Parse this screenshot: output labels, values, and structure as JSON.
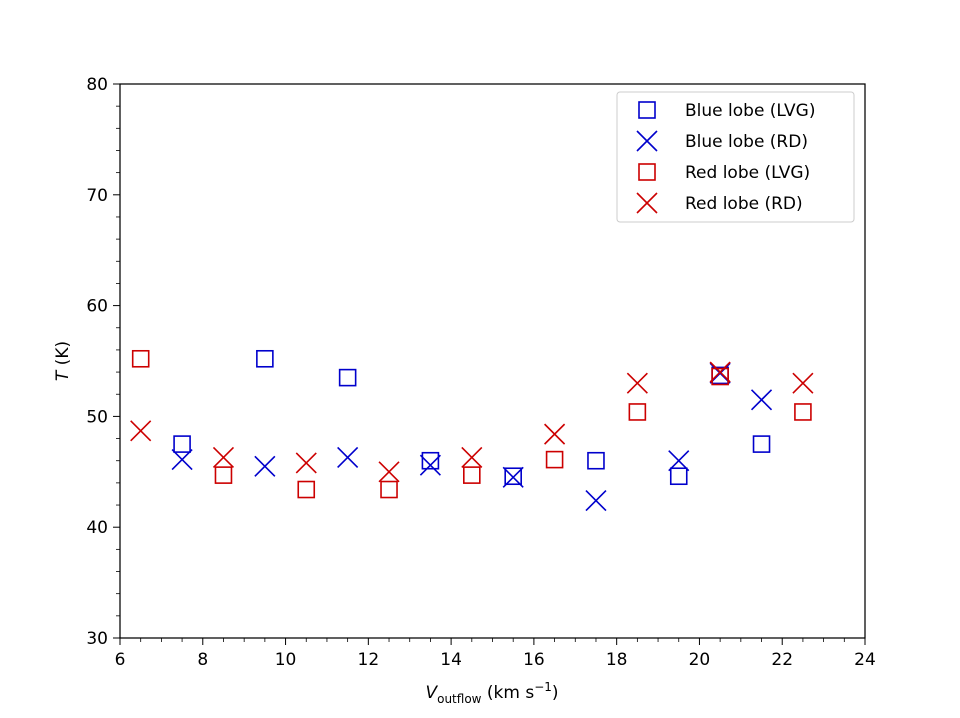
{
  "chart_data": {
    "type": "scatter",
    "title": "",
    "xlabel_main": "V",
    "xlabel_sub": "outflow",
    "xlabel_unit_pre": " (km s",
    "xlabel_unit_sup": "−1",
    "xlabel_unit_post": ")",
    "ylabel_main": "T",
    "ylabel_unit": " (K)",
    "xlim": [
      6,
      24
    ],
    "ylim": [
      30,
      80
    ],
    "xticks": [
      6,
      8,
      10,
      12,
      14,
      16,
      18,
      20,
      22,
      24
    ],
    "yticks": [
      30,
      40,
      50,
      60,
      70,
      80
    ],
    "xminor_step": 0.5,
    "yminor_step": 2,
    "legend_position": "top-right",
    "colors": {
      "blue": "#0000cc",
      "red": "#cc0000"
    },
    "series": [
      {
        "name": "Blue lobe (LVG)",
        "marker": "square",
        "color": "#0000cc",
        "points": [
          [
            7.5,
            47.5
          ],
          [
            9.5,
            55.2
          ],
          [
            11.5,
            53.5
          ],
          [
            13.5,
            46.0
          ],
          [
            15.5,
            44.6
          ],
          [
            17.5,
            46.0
          ],
          [
            19.5,
            44.6
          ],
          [
            20.5,
            53.7
          ],
          [
            21.5,
            47.5
          ]
        ]
      },
      {
        "name": "Blue lobe (RD)",
        "marker": "x",
        "color": "#0000cc",
        "points": [
          [
            7.5,
            46.1
          ],
          [
            9.5,
            45.5
          ],
          [
            11.5,
            46.3
          ],
          [
            13.5,
            45.6
          ],
          [
            15.5,
            44.5
          ],
          [
            17.5,
            42.4
          ],
          [
            19.5,
            46.0
          ],
          [
            20.5,
            53.9
          ],
          [
            21.5,
            51.5
          ]
        ]
      },
      {
        "name": "Red lobe (LVG)",
        "marker": "square",
        "color": "#cc0000",
        "points": [
          [
            6.5,
            55.2
          ],
          [
            8.5,
            44.7
          ],
          [
            10.5,
            43.4
          ],
          [
            12.5,
            43.4
          ],
          [
            14.5,
            44.7
          ],
          [
            16.5,
            46.1
          ],
          [
            18.5,
            50.4
          ],
          [
            20.5,
            53.6
          ],
          [
            22.5,
            50.4
          ]
        ]
      },
      {
        "name": "Red lobe (RD)",
        "marker": "x",
        "color": "#cc0000",
        "points": [
          [
            6.5,
            48.7
          ],
          [
            8.5,
            46.3
          ],
          [
            10.5,
            45.8
          ],
          [
            12.5,
            45.0
          ],
          [
            14.5,
            46.3
          ],
          [
            16.5,
            48.4
          ],
          [
            18.5,
            53.0
          ],
          [
            20.5,
            54.0
          ],
          [
            22.5,
            53.0
          ]
        ]
      }
    ]
  }
}
